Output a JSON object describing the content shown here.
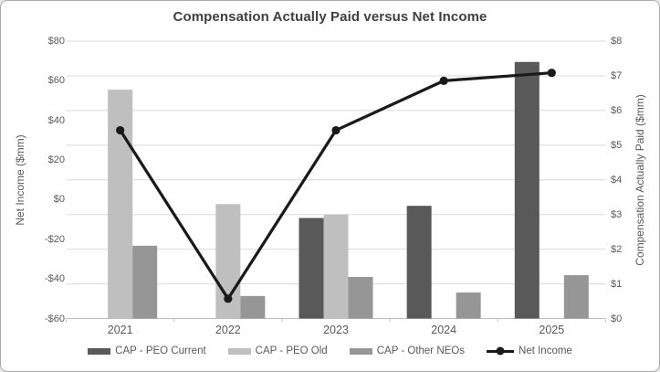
{
  "chart": {
    "title": "Compensation Actually Paid versus Net Income",
    "left_axis": {
      "title": "Net Income ($mm)",
      "tick_labels": [
        "$80",
        "$60",
        "$40",
        "$20",
        "$0",
        "-$20",
        "-$40",
        "-$60"
      ],
      "max": 80,
      "min": -60
    },
    "right_axis": {
      "title": "Compensation Actually Paid ($mm)",
      "tick_labels": [
        "$8",
        "$7",
        "$6",
        "$5",
        "$4",
        "$3",
        "$2",
        "$1",
        "$0"
      ],
      "max": 8,
      "min": 0
    }
  },
  "chart_data": {
    "type": "combo-bar-line",
    "categories": [
      "2021",
      "2022",
      "2023",
      "2024",
      "2025"
    ],
    "series": [
      {
        "name": "CAP - PEO Current",
        "type": "bar",
        "axis": "right",
        "color": "#595959",
        "values": [
          null,
          null,
          2.9,
          3.25,
          7.4
        ]
      },
      {
        "name": "CAP - PEO Old",
        "type": "bar",
        "axis": "right",
        "color": "#bfbfbf",
        "values": [
          6.6,
          3.3,
          3.0,
          null,
          null
        ]
      },
      {
        "name": "CAP - Other NEOs",
        "type": "bar",
        "axis": "right",
        "color": "#969696",
        "values": [
          2.1,
          0.65,
          1.2,
          0.75,
          1.25
        ]
      },
      {
        "name": "Net Income",
        "type": "line",
        "axis": "left",
        "color": "#1a1a1a",
        "values": [
          35,
          -50,
          35,
          60,
          64
        ]
      }
    ],
    "left_ylim": [
      -60,
      80
    ],
    "right_ylim": [
      0,
      8
    ],
    "grid": "horizontal gridlines at right-axis whole-dollar intervals",
    "legend_position": "bottom"
  },
  "colors": {
    "title_text": "#404040",
    "axis_text": "#595959",
    "gridline": "#d9d9d9",
    "axis_line": "#bfbfbf",
    "background": "#ffffff",
    "border": "#ababab"
  }
}
